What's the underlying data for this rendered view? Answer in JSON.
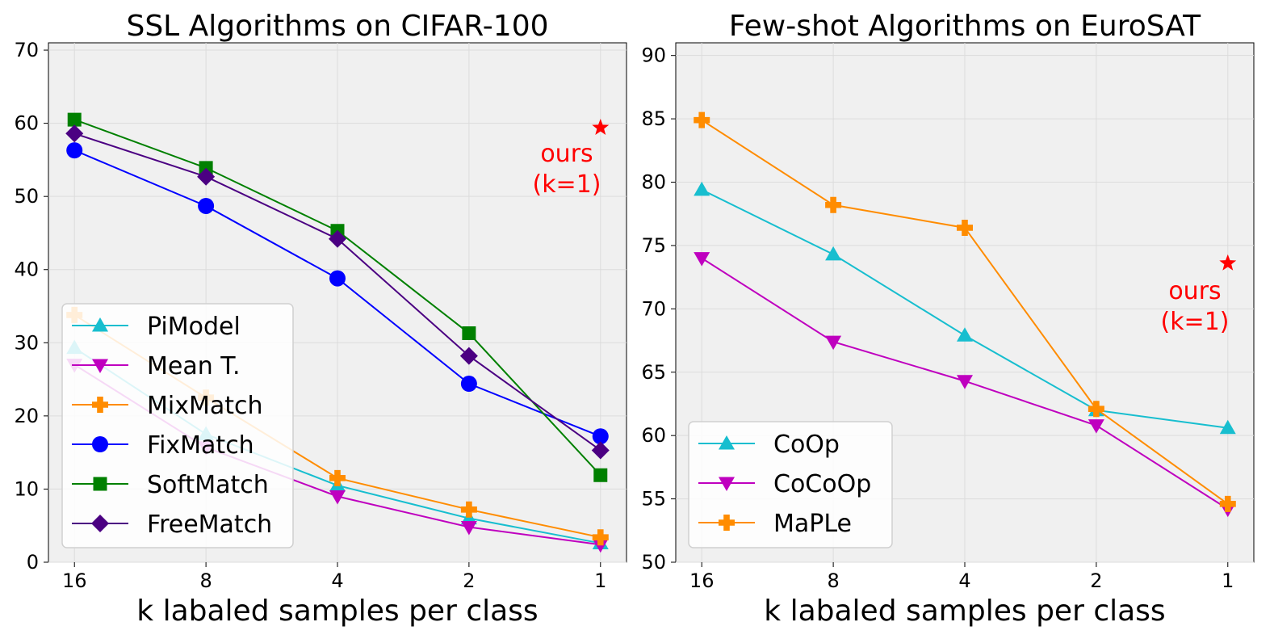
{
  "chart_data": [
    {
      "type": "line",
      "title": "SSL Algorithms on CIFAR-100",
      "xlabel": "k labaled samples per class",
      "ylabel": "",
      "x_categories": [
        "16",
        "8",
        "4",
        "2",
        "1"
      ],
      "x_values": [
        16,
        8,
        4,
        2,
        1
      ],
      "ylim": [
        0,
        71
      ],
      "yticks": [
        0,
        10,
        20,
        30,
        40,
        50,
        60,
        70
      ],
      "grid": true,
      "legend_position": "lower-left",
      "series": [
        {
          "name": "PiModel",
          "color": "#17becf",
          "marker": "triangle-up",
          "values": [
            29.3,
            17.5,
            10.5,
            6.0,
            2.6
          ]
        },
        {
          "name": "Mean T.",
          "color": "#bf00bf",
          "marker": "triangle-down",
          "values": [
            27.0,
            15.7,
            9.0,
            4.8,
            2.4
          ]
        },
        {
          "name": "MixMatch",
          "color": "#ff8c00",
          "marker": "plus",
          "values": [
            33.8,
            22.5,
            11.5,
            7.2,
            3.4
          ]
        },
        {
          "name": "FixMatch",
          "color": "#0000ff",
          "marker": "circle",
          "values": [
            56.3,
            48.7,
            38.8,
            24.4,
            17.2
          ]
        },
        {
          "name": "SoftMatch",
          "color": "#008000",
          "marker": "square",
          "values": [
            60.5,
            53.9,
            45.3,
            31.3,
            11.9
          ]
        },
        {
          "name": "FreeMatch",
          "color": "#4b0082",
          "marker": "diamond",
          "values": [
            58.6,
            52.7,
            44.2,
            28.2,
            15.3
          ]
        }
      ],
      "ours": {
        "x": 1,
        "value": 59.4,
        "color": "#ff0000",
        "marker": "star",
        "label_line1": "ours",
        "label_line2": "(k=1)"
      }
    },
    {
      "type": "line",
      "title": "Few-shot Algorithms on EuroSAT",
      "xlabel": "k labaled samples per class",
      "ylabel": "",
      "x_categories": [
        "16",
        "8",
        "4",
        "2",
        "1"
      ],
      "x_values": [
        16,
        8,
        4,
        2,
        1
      ],
      "ylim": [
        50,
        91
      ],
      "yticks": [
        50,
        55,
        60,
        65,
        70,
        75,
        80,
        85,
        90
      ],
      "grid": true,
      "legend_position": "lower-left",
      "series": [
        {
          "name": "CoOp",
          "color": "#17becf",
          "marker": "triangle-up",
          "values": [
            79.4,
            74.3,
            67.9,
            62.0,
            60.6
          ]
        },
        {
          "name": "CoCoOp",
          "color": "#bf00bf",
          "marker": "triangle-down",
          "values": [
            74.0,
            67.4,
            64.3,
            60.8,
            54.2
          ]
        },
        {
          "name": "MaPLe",
          "color": "#ff8c00",
          "marker": "plus",
          "values": [
            84.9,
            78.2,
            76.4,
            62.1,
            54.6
          ]
        }
      ],
      "ours": {
        "x": 1,
        "value": 73.6,
        "color": "#ff0000",
        "marker": "star",
        "label_line1": "ours",
        "label_line2": "(k=1)"
      }
    }
  ]
}
